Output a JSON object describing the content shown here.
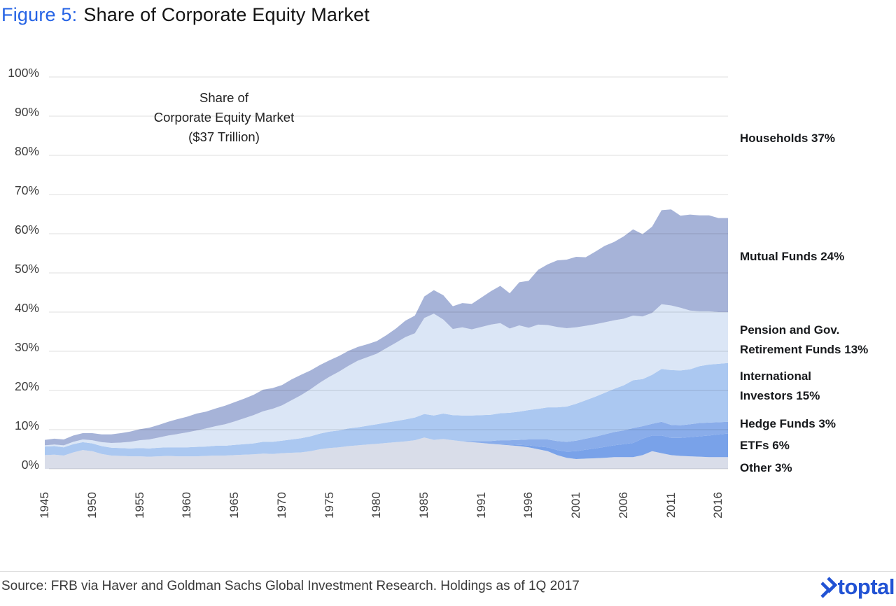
{
  "page": {
    "title_figure_label": "Figure 5:",
    "title_text": "Share of Corporate Equity Market"
  },
  "annotation": {
    "text": "Share of\nCorporate Equity Market\n($37 Trillion)"
  },
  "footer": {
    "source": "Source: FRB via Haver and Goldman Sachs Global Investment Research. Holdings as of 1Q 2017",
    "brand": "toptal",
    "brand_color": "#2253d4"
  },
  "chart_data": {
    "type": "area",
    "stacked": true,
    "title": "Share of Corporate Equity Market ($37 Trillion)",
    "x_range": [
      1945,
      2017
    ],
    "ylim": [
      0,
      100
    ],
    "grid": true,
    "legend_position": "right-outside",
    "y_ticks": [
      "100%",
      "90%",
      "80%",
      "70%",
      "60%",
      "50%",
      "40%",
      "30%",
      "20%",
      "10%",
      "0%"
    ],
    "x_tick_labels": [
      "1945",
      "1950",
      "1955",
      "1960",
      "1965",
      "1970",
      "1975",
      "1980",
      "1985",
      "1991",
      "1996",
      "2001",
      "2006",
      "2011",
      "2016"
    ],
    "series": [
      {
        "id": "other",
        "name": "Other",
        "share_2017": "3%",
        "color": "#d9dde9",
        "values": [
          3.5,
          3.6,
          3.4,
          4.2,
          4.8,
          4.5,
          3.8,
          3.4,
          3.3,
          3.2,
          3.2,
          3.1,
          3.2,
          3.3,
          3.2,
          3.2,
          3.2,
          3.3,
          3.4,
          3.4,
          3.5,
          3.6,
          3.7,
          3.9,
          3.8,
          4.0,
          4.1,
          4.2,
          4.5,
          5.0,
          5.3,
          5.5,
          5.8,
          6.0,
          6.2,
          6.4,
          6.6,
          6.8,
          7.0,
          7.3,
          8.0,
          7.4,
          7.6,
          7.3,
          7.0,
          6.8,
          6.6,
          6.4,
          6.2,
          6.0,
          5.8,
          5.5,
          5.0,
          4.5,
          3.5,
          2.8,
          2.5,
          2.6,
          2.7,
          2.8,
          3.0,
          3.0,
          3.0,
          3.5,
          4.5,
          4.0,
          3.5,
          3.3,
          3.2,
          3.1,
          3.0,
          3.0,
          3.0
        ]
      },
      {
        "id": "etfs",
        "name": "ETFs",
        "share_2017": "6%",
        "color": "#79a2e9",
        "values": [
          0,
          0,
          0,
          0,
          0,
          0,
          0,
          0,
          0,
          0,
          0,
          0,
          0,
          0,
          0,
          0,
          0,
          0,
          0,
          0,
          0,
          0,
          0,
          0,
          0,
          0,
          0,
          0,
          0,
          0,
          0,
          0,
          0,
          0,
          0,
          0,
          0,
          0,
          0,
          0,
          0,
          0,
          0,
          0,
          0,
          0,
          0,
          0,
          0.1,
          0.2,
          0.3,
          0.5,
          0.7,
          1.0,
          1.3,
          1.6,
          2.0,
          2.3,
          2.5,
          2.8,
          3.0,
          3.3,
          3.6,
          4.2,
          4.0,
          4.5,
          4.4,
          4.6,
          4.9,
          5.2,
          5.5,
          5.8,
          6.0
        ]
      },
      {
        "id": "hedge_funds",
        "name": "Hedge Funds",
        "share_2017": "3%",
        "color": "#8aadea",
        "values": [
          0,
          0,
          0,
          0,
          0,
          0,
          0,
          0,
          0,
          0,
          0,
          0,
          0,
          0,
          0,
          0,
          0,
          0,
          0,
          0,
          0,
          0,
          0,
          0,
          0,
          0,
          0,
          0,
          0,
          0,
          0,
          0,
          0,
          0,
          0,
          0,
          0,
          0,
          0,
          0,
          0,
          0,
          0,
          0,
          0,
          0.3,
          0.5,
          0.7,
          1.0,
          1.1,
          1.3,
          1.5,
          1.8,
          2.0,
          2.3,
          2.5,
          2.7,
          2.8,
          3.0,
          3.2,
          3.4,
          3.5,
          3.8,
          3.2,
          3.0,
          3.5,
          3.3,
          3.2,
          3.3,
          3.4,
          3.3,
          3.1,
          3.0
        ]
      },
      {
        "id": "international_investors",
        "name": "International Investors",
        "share_2017": "15%",
        "color": "#abc8f1",
        "values": [
          2.2,
          2.2,
          2.1,
          2.1,
          2.0,
          2.0,
          2.0,
          2.0,
          2.0,
          2.0,
          2.1,
          2.1,
          2.2,
          2.2,
          2.3,
          2.3,
          2.4,
          2.4,
          2.5,
          2.5,
          2.6,
          2.7,
          2.8,
          3.0,
          3.1,
          3.2,
          3.4,
          3.6,
          3.8,
          4.0,
          4.2,
          4.3,
          4.5,
          4.6,
          4.8,
          5.0,
          5.2,
          5.4,
          5.6,
          5.8,
          6.0,
          6.2,
          6.5,
          6.4,
          6.6,
          6.5,
          6.6,
          6.7,
          6.9,
          7.0,
          7.2,
          7.5,
          7.8,
          8.2,
          8.6,
          9.0,
          9.4,
          9.8,
          10.2,
          10.6,
          11.0,
          11.5,
          12.2,
          12.0,
          12.5,
          13.5,
          14.0,
          14.0,
          14.0,
          14.5,
          14.8,
          14.9,
          15.0
        ]
      },
      {
        "id": "pension_gov_retirement",
        "name": "Pension and Gov. Retirement Funds",
        "share_2017": "13%",
        "color": "#dbe6f6",
        "values": [
          0.3,
          0.4,
          0.5,
          0.6,
          0.7,
          0.8,
          1.0,
          1.2,
          1.4,
          1.7,
          2.0,
          2.3,
          2.6,
          3.0,
          3.4,
          3.8,
          4.2,
          4.6,
          5.0,
          5.5,
          6.0,
          6.6,
          7.2,
          7.8,
          8.4,
          9.0,
          10.0,
          11.0,
          12.0,
          13.0,
          14.0,
          15.0,
          16.0,
          17.0,
          17.5,
          18.0,
          19.0,
          20.0,
          21.0,
          21.5,
          24.5,
          26.0,
          24.0,
          22.0,
          22.5,
          22.0,
          22.5,
          23.0,
          23.0,
          21.5,
          22.0,
          21.0,
          21.5,
          21.0,
          20.5,
          20.0,
          19.5,
          19.0,
          18.5,
          18.0,
          17.5,
          17.0,
          16.5,
          16.0,
          15.8,
          16.5,
          16.5,
          16.0,
          15.0,
          14.0,
          13.6,
          13.2,
          13.0
        ]
      },
      {
        "id": "mutual_funds",
        "name": "Mutual Funds",
        "share_2017": "24%",
        "color": "#a6b3d8",
        "values": [
          1.4,
          1.5,
          1.5,
          1.6,
          1.6,
          1.8,
          2.0,
          2.2,
          2.4,
          2.6,
          2.8,
          3.0,
          3.2,
          3.5,
          3.8,
          4.0,
          4.3,
          4.3,
          4.5,
          4.7,
          4.9,
          5.0,
          5.2,
          5.5,
          5.3,
          5.2,
          5.3,
          5.2,
          4.8,
          4.5,
          4.2,
          4.0,
          3.8,
          3.5,
          3.3,
          3.2,
          3.3,
          3.6,
          4.2,
          4.5,
          5.5,
          6.0,
          6.2,
          5.8,
          6.2,
          6.5,
          7.5,
          8.5,
          9.5,
          9.0,
          11.0,
          12.0,
          14.0,
          15.5,
          17.0,
          17.5,
          18.0,
          17.5,
          18.5,
          19.5,
          20.0,
          21.0,
          22.0,
          21.0,
          22.0,
          24.0,
          24.5,
          23.5,
          24.5,
          24.5,
          24.5,
          24.0,
          24.0
        ]
      }
    ],
    "implicit_remainder": {
      "id": "households",
      "name": "Households",
      "share_2017": "37%",
      "note": "unshaded area above stack"
    },
    "series_labels": [
      {
        "id": "households",
        "text": "Households 37%"
      },
      {
        "id": "mutual_funds",
        "text": "Mutual Funds 24%"
      },
      {
        "id": "pension_gov_retirement",
        "text": "Pension and Gov.\nRetirement Funds 13%"
      },
      {
        "id": "international_investors",
        "text": "International\nInvestors 15%"
      },
      {
        "id": "hedge_funds",
        "text": "Hedge Funds 3%"
      },
      {
        "id": "etfs",
        "text": "ETFs 6%"
      },
      {
        "id": "other",
        "text": "Other 3%"
      }
    ]
  }
}
